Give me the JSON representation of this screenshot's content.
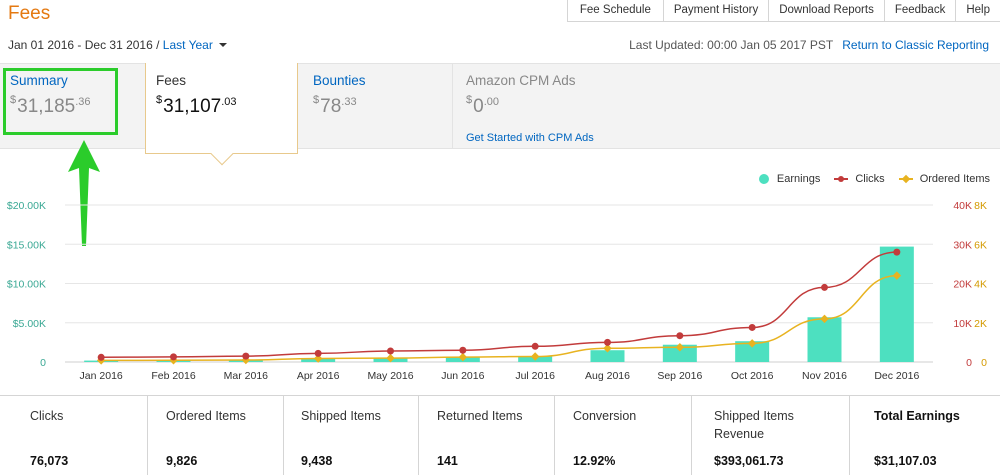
{
  "page": {
    "title": "Fees"
  },
  "top_nav": [
    "Fee Schedule",
    "Payment History",
    "Download Reports",
    "Feedback",
    "Help"
  ],
  "date_range": {
    "range": "Jan 01 2016 - Dec 31 2016",
    "separator": " / ",
    "preset": "Last Year"
  },
  "status": {
    "last_updated": "Last Updated: 00:00 Jan 05 2017 PST",
    "classic_link": "Return to Classic Reporting"
  },
  "tabs": {
    "summary": {
      "label": "Summary",
      "currency": "$",
      "whole": "31,185",
      "cents": ".36"
    },
    "fees": {
      "label": "Fees",
      "currency": "$",
      "whole": "31,107",
      "cents": ".03"
    },
    "bounties": {
      "label": "Bounties",
      "currency": "$",
      "whole": "78",
      "cents": ".33"
    },
    "cpm": {
      "label": "Amazon CPM Ads",
      "currency": "$",
      "whole": "0",
      "cents": ".00",
      "link": "Get Started with CPM Ads"
    }
  },
  "colors": {
    "earnings": "#4de0c0",
    "clicks": "#c23b3b",
    "ordered": "#e8b320",
    "accent": "#e47911",
    "link": "#0066c0",
    "highlight": "#2bcc2b"
  },
  "annotation": {
    "highlight": "summary-tab",
    "arrow_icon": "up-arrow-icon"
  },
  "chart_data": {
    "type": "bar",
    "categories": [
      "Jan 2016",
      "Feb 2016",
      "Mar 2016",
      "Apr 2016",
      "May 2016",
      "Jun 2016",
      "Jul 2016",
      "Aug 2016",
      "Sep 2016",
      "Oct 2016",
      "Nov 2016",
      "Dec 2016"
    ],
    "series": [
      {
        "name": "Earnings",
        "type": "bar",
        "axis": "left",
        "values": [
          180,
          200,
          260,
          430,
          500,
          620,
          760,
          1500,
          2200,
          2650,
          5700,
          14700
        ]
      },
      {
        "name": "Clicks",
        "type": "line",
        "axis": "right-outer",
        "values": [
          1200,
          1300,
          1500,
          2200,
          2800,
          3000,
          4000,
          5000,
          6700,
          8800,
          19000,
          28000
        ]
      },
      {
        "name": "Ordered Items",
        "type": "line",
        "axis": "right-inner",
        "values": [
          80,
          90,
          100,
          180,
          200,
          250,
          280,
          700,
          750,
          950,
          2200,
          4400
        ]
      }
    ],
    "y_left": {
      "min": 0,
      "max": 20000,
      "ticks": [
        "0",
        "$5.00K",
        "$10.00K",
        "$15.00K",
        "$20.00K"
      ]
    },
    "y_right_outer": {
      "min": 0,
      "max": 40000,
      "ticks": [
        "0",
        "10K",
        "20K",
        "30K",
        "40K"
      ]
    },
    "y_right_inner": {
      "min": 0,
      "max": 8000,
      "ticks": [
        "0",
        "2K",
        "4K",
        "6K",
        "8K"
      ]
    },
    "grid": true,
    "legend_position": "top-right"
  },
  "stats": [
    {
      "label": "Clicks",
      "value": "76,073"
    },
    {
      "label": "Ordered Items",
      "value": "9,826"
    },
    {
      "label": "Shipped Items",
      "value": "9,438"
    },
    {
      "label": "Returned Items",
      "value": "141"
    },
    {
      "label": "Conversion",
      "value": "12.92%"
    },
    {
      "label": "Shipped Items Revenue",
      "value": "$393,061.73"
    },
    {
      "label": "Total Earnings",
      "value": "$31,107.03"
    }
  ]
}
